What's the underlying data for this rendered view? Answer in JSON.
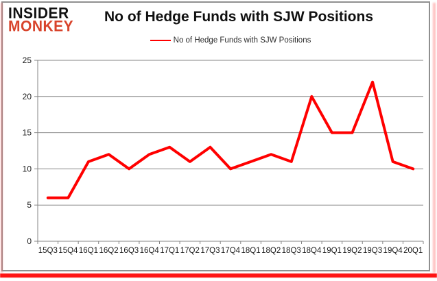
{
  "logo": {
    "line1": "INSIDER",
    "line2": "MONKEY",
    "line1_color": "#111111",
    "line2_color": "#d8432b"
  },
  "header": {
    "title": "No of Hedge Funds with SJW Positions"
  },
  "legend": {
    "label": "No of Hedge Funds with SJW Positions",
    "swatch_color": "#ff0000"
  },
  "theme": {
    "line_red": "#ff0000",
    "grid_color": "#848484",
    "axis_color": "#848484",
    "text_color": "#1a1a1a",
    "frame_border": "#8f8f8f",
    "bottom_bar_red": "#ff1414",
    "background": "#ffffff"
  },
  "chart_data": {
    "type": "line",
    "title": "No of Hedge Funds with SJW Positions",
    "categories": [
      "15Q3",
      "15Q4",
      "16Q1",
      "16Q2",
      "16Q3",
      "16Q4",
      "17Q1",
      "17Q2",
      "17Q3",
      "17Q4",
      "18Q1",
      "18Q2",
      "18Q3",
      "18Q4",
      "19Q1",
      "19Q2",
      "19Q3",
      "19Q4",
      "20Q1"
    ],
    "series": [
      {
        "name": "No of Hedge Funds with SJW Positions",
        "color": "#ff0000",
        "values": [
          6,
          6,
          11,
          12,
          10,
          12,
          13,
          11,
          13,
          10,
          11,
          12,
          11,
          20,
          15,
          15,
          22,
          11,
          10
        ]
      }
    ],
    "xlabel": "",
    "ylabel": "",
    "ylim": [
      0,
      25
    ],
    "yticks": [
      0,
      5,
      10,
      15,
      20,
      25
    ],
    "grid": true,
    "legend_position": "top-center"
  }
}
